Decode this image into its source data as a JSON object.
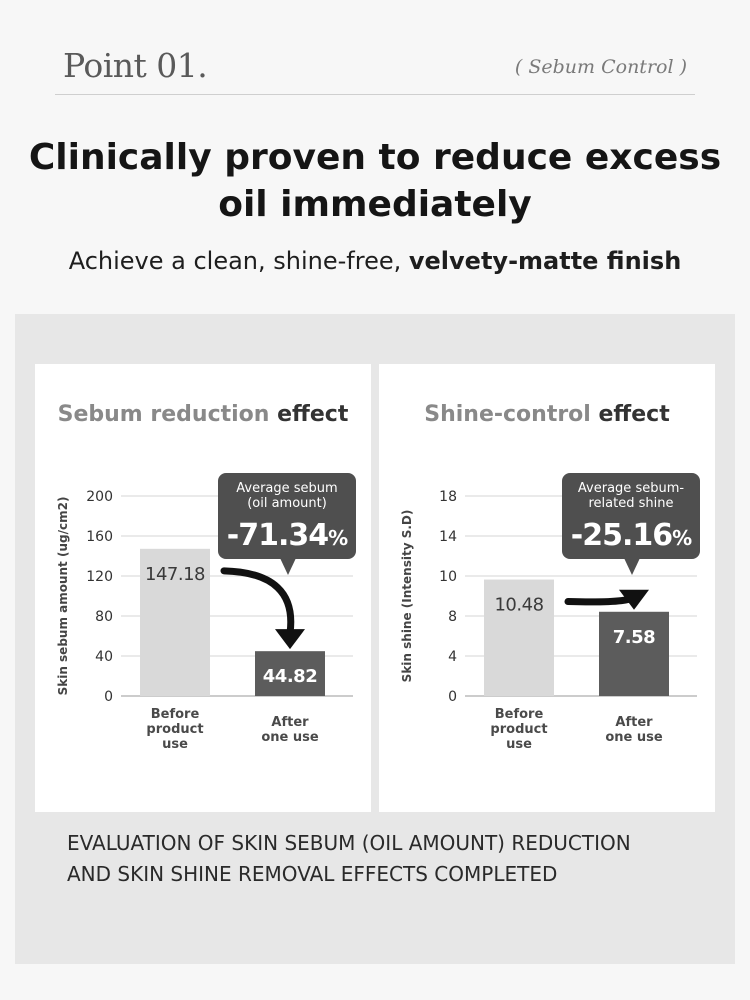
{
  "header": {
    "point_label": "Point 01.",
    "section_tag": "( Sebum Control )"
  },
  "headline": {
    "line1": "Clinically proven to reduce excess",
    "line2": "oil immediately"
  },
  "subline": {
    "regular": "Achieve a clean, shine-free, ",
    "bold": "velvety-matte finish"
  },
  "footer": {
    "line1": "EVALUATION OF SKIN SEBUM (OIL AMOUNT) REDUCTION",
    "line2": "AND SKIN SHINE REMOVAL EFFECTS COMPLETED"
  },
  "colors": {
    "before_bar": "#d9d9d9",
    "after_bar": "#5c5c5c",
    "callout_bg": "#4f4f4f"
  },
  "chart_data": [
    {
      "type": "bar",
      "title_light": "Sebum reduction",
      "title_dark": "effect",
      "ylabel": "Skin sebum amount (ug/cm2)",
      "ylim": [
        0,
        200
      ],
      "yticks": [
        0,
        40,
        80,
        120,
        160,
        200
      ],
      "categories": [
        [
          "Before",
          "product",
          "use"
        ],
        [
          "After",
          "one use"
        ]
      ],
      "values": [
        147.18,
        44.82
      ],
      "value_labels": [
        "147.18",
        "44.82"
      ],
      "callout": {
        "lines": [
          "Average sebum",
          "(oil amount)"
        ],
        "value": "-71.34",
        "unit": "%"
      }
    },
    {
      "type": "bar",
      "title_light": "Shine-control",
      "title_dark": "effect",
      "ylabel": "Skin shine (Intensity S.D)",
      "ylim": [
        0,
        18
      ],
      "yticks": [
        0,
        4,
        8,
        10,
        14,
        18
      ],
      "categories": [
        [
          "Before",
          "product",
          "use"
        ],
        [
          "After",
          "one use"
        ]
      ],
      "values": [
        10.48,
        7.58
      ],
      "value_labels": [
        "10.48",
        "7.58"
      ],
      "callout": {
        "lines": [
          "Average sebum-",
          "related shine"
        ],
        "value": "-25.16",
        "unit": "%"
      }
    }
  ]
}
